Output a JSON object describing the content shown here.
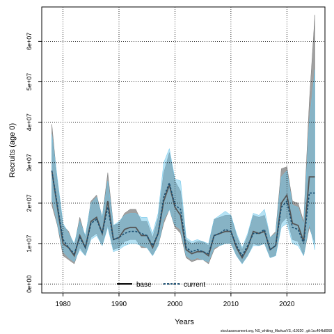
{
  "chart_data": {
    "type": "line",
    "xlabel": "Years",
    "ylabel": "Recruits (age 0)",
    "xlim": [
      1976.2,
      2026.8
    ],
    "ylim": [
      -2200000,
      68500000
    ],
    "x_ticks": [
      1980,
      1990,
      2000,
      2010,
      2020
    ],
    "x_tick_labels": [
      "1980",
      "1990",
      "2000",
      "2010",
      "2020"
    ],
    "y_ticks": [
      0,
      10000000,
      20000000,
      30000000,
      40000000,
      50000000,
      60000000
    ],
    "y_tick_labels": [
      "0e+00",
      "1e+07",
      "2e+07",
      "3e+07",
      "4e+07",
      "5e+07",
      "6e+07"
    ],
    "grid": true,
    "legend": {
      "placement": "bottom-center",
      "entries": [
        "base",
        "current"
      ]
    },
    "years": [
      1978,
      1979,
      1980,
      1981,
      1982,
      1983,
      1984,
      1985,
      1986,
      1987,
      1988,
      1989,
      1990,
      1991,
      1992,
      1993,
      1994,
      1995,
      1996,
      1997,
      1998,
      1999,
      2000,
      2001,
      2002,
      2003,
      2004,
      2005,
      2006,
      2007,
      2008,
      2009,
      2010,
      2011,
      2012,
      2013,
      2014,
      2015,
      2016,
      2017,
      2018,
      2019,
      2020,
      2021,
      2022,
      2023,
      2024,
      2025
    ],
    "series": [
      {
        "name": "base",
        "color": "#555555",
        "band_color": "#808080",
        "values": [
          28000000,
          19000000,
          10000000,
          9000000,
          7000000,
          12000000,
          9000000,
          15500000,
          16500000,
          12500000,
          20500000,
          11000000,
          11500000,
          13500000,
          14000000,
          14000000,
          12000000,
          12000000,
          9000000,
          12500000,
          20500000,
          24500000,
          19000000,
          17000000,
          8500000,
          7500000,
          8000000,
          8000000,
          7000000,
          12000000,
          12500000,
          13000000,
          13000000,
          9000000,
          6500000,
          9000000,
          13000000,
          12500000,
          13000000,
          8500000,
          9500000,
          20000000,
          22000000,
          15000000,
          14500000,
          10500000,
          26500000,
          26500000
        ],
        "lower": [
          19500000,
          14500000,
          7000000,
          6000000,
          5000000,
          9000000,
          7000000,
          11500000,
          12500000,
          9500000,
          14500000,
          8500000,
          9000000,
          10500000,
          11000000,
          11000000,
          9000000,
          9000000,
          7000000,
          9500000,
          15000000,
          18500000,
          14000000,
          12500000,
          6500000,
          5500000,
          6000000,
          6000000,
          5000000,
          8500000,
          9500000,
          10000000,
          10000000,
          7000000,
          5000000,
          7000000,
          10000000,
          9500000,
          10000000,
          6500000,
          7000000,
          15000000,
          16500000,
          11000000,
          10500000,
          7000000,
          14000000,
          10000000
        ],
        "upper": [
          39500000,
          25000000,
          14500000,
          13000000,
          9500000,
          16500000,
          11500000,
          20500000,
          22000000,
          16500000,
          27500000,
          14500000,
          15000000,
          17500000,
          18500000,
          18500000,
          15500000,
          15500000,
          11500000,
          16500000,
          27500000,
          32500000,
          25500000,
          23000000,
          11000000,
          10000000,
          10500000,
          10500000,
          9500000,
          16000000,
          16500000,
          17000000,
          17000000,
          12000000,
          8500000,
          12000000,
          17000000,
          16500000,
          17000000,
          11500000,
          13000000,
          28500000,
          29000000,
          20500000,
          20000000,
          15500000,
          45000000,
          66500000
        ]
      },
      {
        "name": "current",
        "color": "#1b4f72",
        "band_color": "#6ec6ea",
        "values": [
          28000000,
          19500000,
          11000000,
          9000000,
          7500000,
          11500000,
          9000000,
          15000000,
          16000000,
          12500000,
          19000000,
          11000000,
          11500000,
          12500000,
          13000000,
          13000000,
          12500000,
          12000000,
          9500000,
          12500000,
          21500000,
          25000000,
          19500000,
          18500000,
          9000000,
          8000000,
          8500000,
          8000000,
          7500000,
          12000000,
          12500000,
          13500000,
          13000000,
          9500000,
          7000000,
          9500000,
          12500000,
          12500000,
          13500000,
          8500000,
          9500000,
          19000000,
          20500000,
          14000000,
          13500000,
          10000000,
          22500000,
          22500000
        ],
        "lower": [
          21000000,
          15000000,
          8000000,
          6500000,
          5500000,
          8500000,
          7000000,
          11000000,
          12000000,
          9500000,
          14000000,
          8000000,
          8500000,
          9500000,
          10000000,
          10000000,
          9500000,
          9000000,
          7000000,
          9500000,
          16000000,
          18500000,
          14500000,
          13500000,
          7000000,
          6000000,
          6500000,
          6000000,
          5500000,
          9000000,
          9500000,
          10000000,
          10000000,
          7000000,
          5000000,
          7000000,
          9500000,
          9500000,
          10000000,
          6500000,
          7000000,
          14000000,
          15000000,
          10000000,
          9500000,
          7000000,
          15000000,
          8500000
        ],
        "upper": [
          37000000,
          26000000,
          15000000,
          12500000,
          10000000,
          15500000,
          12000000,
          20000000,
          21500000,
          16500000,
          25500000,
          14500000,
          15500000,
          17000000,
          17500000,
          17500000,
          16500000,
          16500000,
          12500000,
          17500000,
          30000000,
          33500000,
          26000000,
          25500000,
          11500000,
          10500000,
          11000000,
          10500000,
          10000000,
          16000000,
          17000000,
          18000000,
          17000000,
          12500000,
          9000000,
          12500000,
          17500000,
          17000000,
          18500000,
          11500000,
          12500000,
          26500000,
          28000000,
          19500000,
          19000000,
          14500000,
          40000000,
          53000000
        ]
      }
    ]
  },
  "footer_credit": "stockassessment.org, NS_whiting_MarkusVS, r19320 , git:1cc464b8068"
}
